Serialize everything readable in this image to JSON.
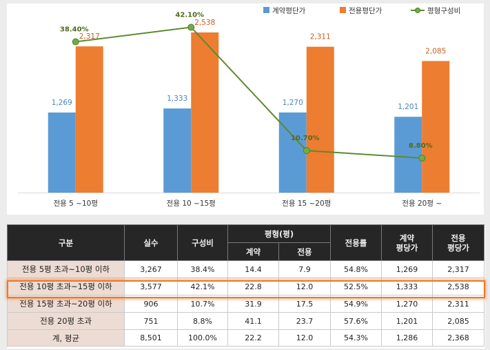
{
  "chart_data": {
    "type": "bar",
    "categories": [
      "전용 5 ~10평",
      "전용 10 ~15평",
      "전용 15 ~20평",
      "전용 20평 ~"
    ],
    "series": [
      {
        "name": "계약평단가",
        "kind": "bar",
        "color": "#5b9bd5",
        "values": [
          1269,
          1333,
          1270,
          1201
        ],
        "labels": [
          "1,269",
          "1,333",
          "1,270",
          "1,201"
        ]
      },
      {
        "name": "전용평단가",
        "kind": "bar",
        "color": "#ed7d31",
        "values": [
          2317,
          2538,
          2311,
          2085
        ],
        "labels": [
          "2,317",
          "2,538",
          "2,311",
          "2,085"
        ]
      },
      {
        "name": "평형구성비",
        "kind": "line",
        "color": "#70ad47",
        "values": [
          38.4,
          42.1,
          10.7,
          8.8
        ],
        "labels": [
          "38.40%",
          "42.10%",
          "10.70%",
          "8.80%"
        ]
      }
    ],
    "ylim": [
      0,
      2800
    ],
    "y2lim": [
      0,
      45
    ],
    "legend": "top-right",
    "grid": false
  },
  "table": {
    "headers": {
      "category": "구분",
      "count": "실수",
      "ratio": "구성비",
      "size_group": "평형(평)",
      "contract": "계약",
      "exclusive": "전용",
      "exclusive_rate": "전용률",
      "contract_price_line1": "계약",
      "contract_price_line2": "평당가",
      "exclusive_price_line1": "전용",
      "exclusive_price_line2": "평당가"
    },
    "rows": [
      {
        "category": "전용 5평 초과~10평 이하",
        "count": "3,267",
        "ratio": "38.4%",
        "contract": "14.4",
        "exclusive": "7.9",
        "exclusive_rate": "54.8%",
        "contract_price": "1,269",
        "exclusive_price": "2,317"
      },
      {
        "category": "전용 10평 초과~15평 이하",
        "count": "3,577",
        "ratio": "42.1%",
        "contract": "22.8",
        "exclusive": "12.0",
        "exclusive_rate": "52.5%",
        "contract_price": "1,333",
        "exclusive_price": "2,538"
      },
      {
        "category": "전용 15평 초과~20평 이하",
        "count": "906",
        "ratio": "10.7%",
        "contract": "31.9",
        "exclusive": "17.5",
        "exclusive_rate": "54.9%",
        "contract_price": "1,270",
        "exclusive_price": "2,311"
      },
      {
        "category": "전용 20평 초과",
        "count": "751",
        "ratio": "8.8%",
        "contract": "41.1",
        "exclusive": "23.7",
        "exclusive_rate": "57.6%",
        "contract_price": "1,201",
        "exclusive_price": "2,085"
      },
      {
        "category": "계, 평균",
        "count": "8,501",
        "ratio": "100.0%",
        "contract": "22.2",
        "exclusive": "12.0",
        "exclusive_rate": "54.3%",
        "contract_price": "1,286",
        "exclusive_price": "2,368"
      }
    ]
  }
}
